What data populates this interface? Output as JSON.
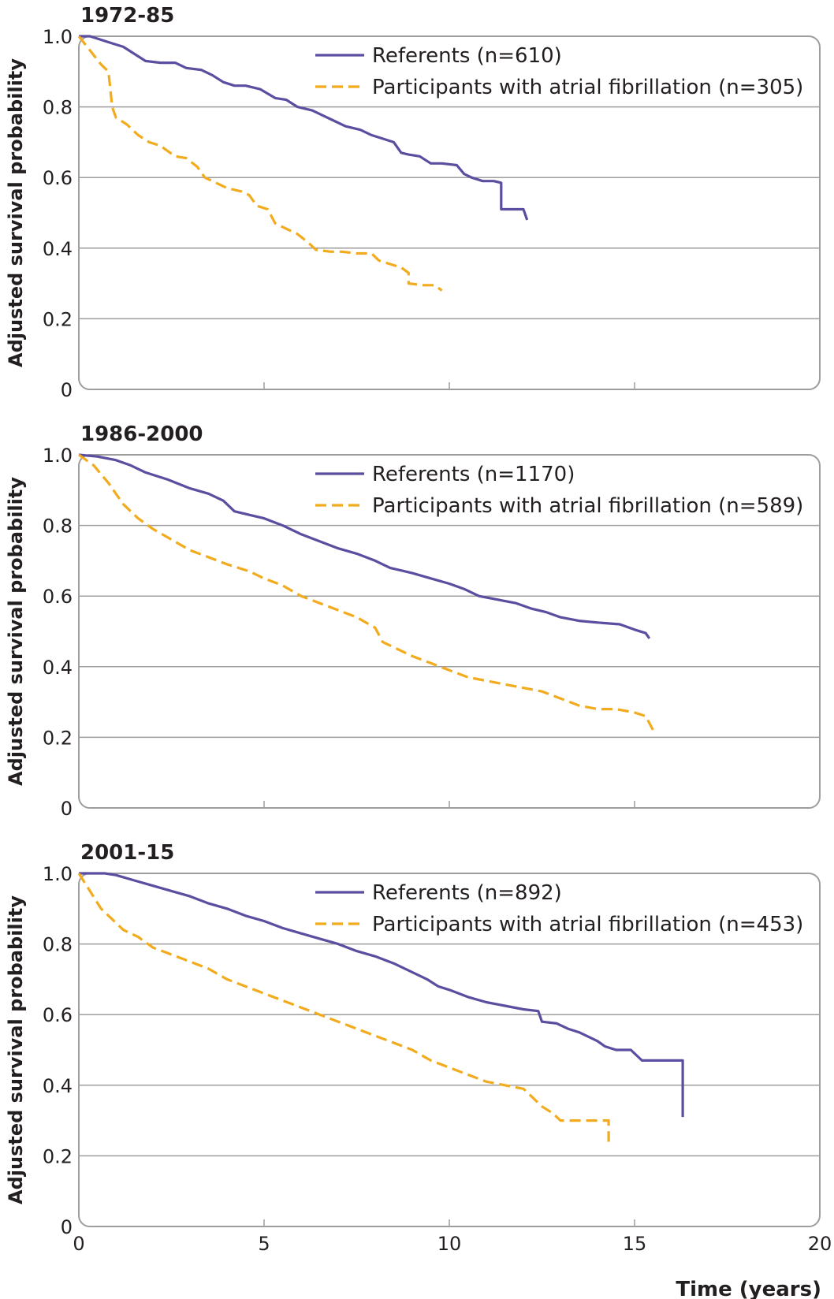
{
  "chart_data": [
    {
      "type": "line",
      "title": "1972-85",
      "xlabel": "",
      "ylabel": "Adjusted survival probability",
      "xlim": [
        0,
        20
      ],
      "ylim": [
        0,
        1
      ],
      "x_ticks": [
        "",
        "",
        "",
        ""
      ],
      "y_ticks": [
        "0",
        "0.2",
        "0.4",
        "0.6",
        "0.8",
        "1.0"
      ],
      "grid": "horizontal",
      "legend_position": "top-right",
      "series": [
        {
          "name": "Referents (n=610)",
          "color": "#5b4d9f",
          "dash": "solid",
          "points": [
            [
              0,
              1.0
            ],
            [
              0.3,
              1.0
            ],
            [
              0.6,
              0.99
            ],
            [
              0.9,
              0.98
            ],
            [
              1.2,
              0.97
            ],
            [
              1.5,
              0.95
            ],
            [
              1.8,
              0.93
            ],
            [
              2.2,
              0.925
            ],
            [
              2.6,
              0.925
            ],
            [
              2.9,
              0.91
            ],
            [
              3.3,
              0.905
            ],
            [
              3.6,
              0.89
            ],
            [
              3.9,
              0.87
            ],
            [
              4.2,
              0.86
            ],
            [
              4.5,
              0.86
            ],
            [
              4.9,
              0.85
            ],
            [
              5.3,
              0.825
            ],
            [
              5.6,
              0.82
            ],
            [
              5.9,
              0.8
            ],
            [
              6.3,
              0.79
            ],
            [
              6.6,
              0.775
            ],
            [
              6.9,
              0.76
            ],
            [
              7.2,
              0.745
            ],
            [
              7.6,
              0.735
            ],
            [
              7.9,
              0.72
            ],
            [
              8.2,
              0.71
            ],
            [
              8.5,
              0.7
            ],
            [
              8.7,
              0.67
            ],
            [
              8.9,
              0.665
            ],
            [
              9.2,
              0.66
            ],
            [
              9.5,
              0.64
            ],
            [
              9.8,
              0.64
            ],
            [
              10.2,
              0.635
            ],
            [
              10.4,
              0.61
            ],
            [
              10.6,
              0.6
            ],
            [
              10.9,
              0.59
            ],
            [
              11.2,
              0.59
            ],
            [
              11.4,
              0.585
            ],
            [
              11.4,
              0.51
            ],
            [
              12.0,
              0.51
            ],
            [
              12.1,
              0.48
            ]
          ]
        },
        {
          "name": "Participants with atrial fibrillation (n=305)",
          "color": "#f1ab1c",
          "dash": "dashed",
          "points": [
            [
              0,
              1.0
            ],
            [
              0.3,
              0.96
            ],
            [
              0.6,
              0.92
            ],
            [
              0.8,
              0.9
            ],
            [
              0.9,
              0.8
            ],
            [
              1.0,
              0.77
            ],
            [
              1.3,
              0.75
            ],
            [
              1.6,
              0.72
            ],
            [
              1.9,
              0.7
            ],
            [
              2.2,
              0.69
            ],
            [
              2.6,
              0.66
            ],
            [
              2.9,
              0.655
            ],
            [
              3.2,
              0.63
            ],
            [
              3.4,
              0.6
            ],
            [
              3.7,
              0.585
            ],
            [
              4.0,
              0.57
            ],
            [
              4.4,
              0.56
            ],
            [
              4.6,
              0.55
            ],
            [
              4.8,
              0.52
            ],
            [
              5.1,
              0.51
            ],
            [
              5.3,
              0.47
            ],
            [
              5.6,
              0.455
            ],
            [
              5.9,
              0.44
            ],
            [
              6.2,
              0.415
            ],
            [
              6.4,
              0.395
            ],
            [
              6.8,
              0.39
            ],
            [
              7.1,
              0.39
            ],
            [
              7.5,
              0.385
            ],
            [
              7.9,
              0.385
            ],
            [
              8.1,
              0.365
            ],
            [
              8.4,
              0.355
            ],
            [
              8.7,
              0.345
            ],
            [
              8.9,
              0.33
            ],
            [
              8.9,
              0.3
            ],
            [
              9.3,
              0.295
            ],
            [
              9.6,
              0.295
            ],
            [
              9.8,
              0.28
            ]
          ]
        }
      ]
    },
    {
      "type": "line",
      "title": "1986-2000",
      "xlabel": "",
      "ylabel": "Adjusted survival probability",
      "xlim": [
        0,
        20
      ],
      "ylim": [
        0,
        1
      ],
      "x_ticks": [
        "",
        "",
        "",
        ""
      ],
      "y_ticks": [
        "0",
        "0.2",
        "0.4",
        "0.6",
        "0.8",
        "1.0"
      ],
      "grid": "horizontal",
      "legend_position": "top-right",
      "series": [
        {
          "name": "Referents (n=1170)",
          "color": "#5b4d9f",
          "dash": "solid",
          "points": [
            [
              0,
              1.0
            ],
            [
              0.5,
              0.995
            ],
            [
              1.0,
              0.985
            ],
            [
              1.4,
              0.97
            ],
            [
              1.8,
              0.95
            ],
            [
              2.4,
              0.93
            ],
            [
              3.0,
              0.905
            ],
            [
              3.5,
              0.89
            ],
            [
              3.9,
              0.87
            ],
            [
              4.2,
              0.84
            ],
            [
              4.6,
              0.83
            ],
            [
              5.0,
              0.82
            ],
            [
              5.5,
              0.8
            ],
            [
              6.0,
              0.775
            ],
            [
              6.5,
              0.755
            ],
            [
              7.0,
              0.735
            ],
            [
              7.5,
              0.72
            ],
            [
              8.0,
              0.7
            ],
            [
              8.4,
              0.68
            ],
            [
              9.0,
              0.665
            ],
            [
              9.5,
              0.65
            ],
            [
              10.0,
              0.635
            ],
            [
              10.4,
              0.62
            ],
            [
              10.8,
              0.6
            ],
            [
              11.3,
              0.59
            ],
            [
              11.8,
              0.58
            ],
            [
              12.2,
              0.565
            ],
            [
              12.6,
              0.555
            ],
            [
              13.0,
              0.54
            ],
            [
              13.5,
              0.53
            ],
            [
              14.0,
              0.525
            ],
            [
              14.6,
              0.52
            ],
            [
              15.0,
              0.505
            ],
            [
              15.3,
              0.495
            ],
            [
              15.4,
              0.48
            ]
          ]
        },
        {
          "name": "Participants with atrial fibrillation (n=589)",
          "color": "#f1ab1c",
          "dash": "dashed",
          "points": [
            [
              0,
              1.0
            ],
            [
              0.4,
              0.97
            ],
            [
              0.8,
              0.92
            ],
            [
              1.2,
              0.86
            ],
            [
              1.6,
              0.82
            ],
            [
              2.0,
              0.79
            ],
            [
              2.5,
              0.76
            ],
            [
              3.0,
              0.73
            ],
            [
              3.5,
              0.71
            ],
            [
              4.0,
              0.69
            ],
            [
              4.6,
              0.67
            ],
            [
              5.0,
              0.65
            ],
            [
              5.5,
              0.63
            ],
            [
              6.0,
              0.6
            ],
            [
              6.5,
              0.58
            ],
            [
              7.0,
              0.56
            ],
            [
              7.5,
              0.54
            ],
            [
              8.0,
              0.51
            ],
            [
              8.2,
              0.47
            ],
            [
              8.6,
              0.45
            ],
            [
              9.0,
              0.43
            ],
            [
              9.5,
              0.41
            ],
            [
              10.0,
              0.39
            ],
            [
              10.5,
              0.37
            ],
            [
              11.0,
              0.36
            ],
            [
              11.5,
              0.35
            ],
            [
              12.0,
              0.34
            ],
            [
              12.5,
              0.33
            ],
            [
              13.0,
              0.31
            ],
            [
              13.5,
              0.29
            ],
            [
              14.0,
              0.28
            ],
            [
              14.5,
              0.28
            ],
            [
              15.0,
              0.27
            ],
            [
              15.3,
              0.26
            ],
            [
              15.5,
              0.22
            ]
          ]
        }
      ]
    },
    {
      "type": "line",
      "title": "2001-15",
      "xlabel": "Time (years)",
      "ylabel": "Adjusted survival probability",
      "xlim": [
        0,
        20
      ],
      "ylim": [
        0,
        1
      ],
      "x_ticks": [
        "0",
        "5",
        "10",
        "15",
        "20"
      ],
      "y_ticks": [
        "0",
        "0.2",
        "0.4",
        "0.6",
        "0.8",
        "1.0"
      ],
      "grid": "horizontal",
      "legend_position": "top-right",
      "series": [
        {
          "name": "Referents (n=892)",
          "color": "#5b4d9f",
          "dash": "solid",
          "points": [
            [
              0,
              1.0
            ],
            [
              0.3,
              1.0
            ],
            [
              0.7,
              1.0
            ],
            [
              1.0,
              0.995
            ],
            [
              1.5,
              0.98
            ],
            [
              2.0,
              0.965
            ],
            [
              2.5,
              0.95
            ],
            [
              3.0,
              0.935
            ],
            [
              3.5,
              0.915
            ],
            [
              4.0,
              0.9
            ],
            [
              4.5,
              0.88
            ],
            [
              5.0,
              0.865
            ],
            [
              5.5,
              0.845
            ],
            [
              6.0,
              0.83
            ],
            [
              6.5,
              0.815
            ],
            [
              7.0,
              0.8
            ],
            [
              7.5,
              0.78
            ],
            [
              8.0,
              0.765
            ],
            [
              8.5,
              0.745
            ],
            [
              9.0,
              0.72
            ],
            [
              9.4,
              0.7
            ],
            [
              9.7,
              0.68
            ],
            [
              10.0,
              0.67
            ],
            [
              10.5,
              0.65
            ],
            [
              11.0,
              0.635
            ],
            [
              11.5,
              0.625
            ],
            [
              12.0,
              0.615
            ],
            [
              12.4,
              0.61
            ],
            [
              12.5,
              0.58
            ],
            [
              12.9,
              0.575
            ],
            [
              13.2,
              0.56
            ],
            [
              13.5,
              0.55
            ],
            [
              14.0,
              0.525
            ],
            [
              14.2,
              0.51
            ],
            [
              14.5,
              0.5
            ],
            [
              14.9,
              0.5
            ],
            [
              15.2,
              0.47
            ],
            [
              15.6,
              0.47
            ],
            [
              16.0,
              0.47
            ],
            [
              16.3,
              0.47
            ],
            [
              16.3,
              0.31
            ]
          ]
        },
        {
          "name": "Participants with atrial fibrillation (n=453)",
          "color": "#f1ab1c",
          "dash": "dashed",
          "points": [
            [
              0,
              1.0
            ],
            [
              0.3,
              0.95
            ],
            [
              0.6,
              0.9
            ],
            [
              0.9,
              0.87
            ],
            [
              1.2,
              0.84
            ],
            [
              1.6,
              0.82
            ],
            [
              2.0,
              0.79
            ],
            [
              2.5,
              0.77
            ],
            [
              3.0,
              0.75
            ],
            [
              3.5,
              0.73
            ],
            [
              4.0,
              0.7
            ],
            [
              4.5,
              0.68
            ],
            [
              5.0,
              0.66
            ],
            [
              5.5,
              0.64
            ],
            [
              6.0,
              0.62
            ],
            [
              6.5,
              0.6
            ],
            [
              7.0,
              0.58
            ],
            [
              7.5,
              0.56
            ],
            [
              8.0,
              0.54
            ],
            [
              8.5,
              0.52
            ],
            [
              9.0,
              0.5
            ],
            [
              9.5,
              0.47
            ],
            [
              10.0,
              0.45
            ],
            [
              10.5,
              0.43
            ],
            [
              11.0,
              0.41
            ],
            [
              11.5,
              0.4
            ],
            [
              12.0,
              0.39
            ],
            [
              12.2,
              0.37
            ],
            [
              12.5,
              0.34
            ],
            [
              12.8,
              0.32
            ],
            [
              13.0,
              0.3
            ],
            [
              13.5,
              0.3
            ],
            [
              14.0,
              0.3
            ],
            [
              14.3,
              0.3
            ],
            [
              14.3,
              0.24
            ]
          ]
        }
      ]
    }
  ],
  "y_axis_label": "Adjusted survival probability",
  "x_axis_label": "Time (years)",
  "colors": {
    "referents": "#5b4d9f",
    "af": "#f1ab1c",
    "frame": "#9d9d9d",
    "grid": "#9d9d9d",
    "text": "#231f20"
  }
}
